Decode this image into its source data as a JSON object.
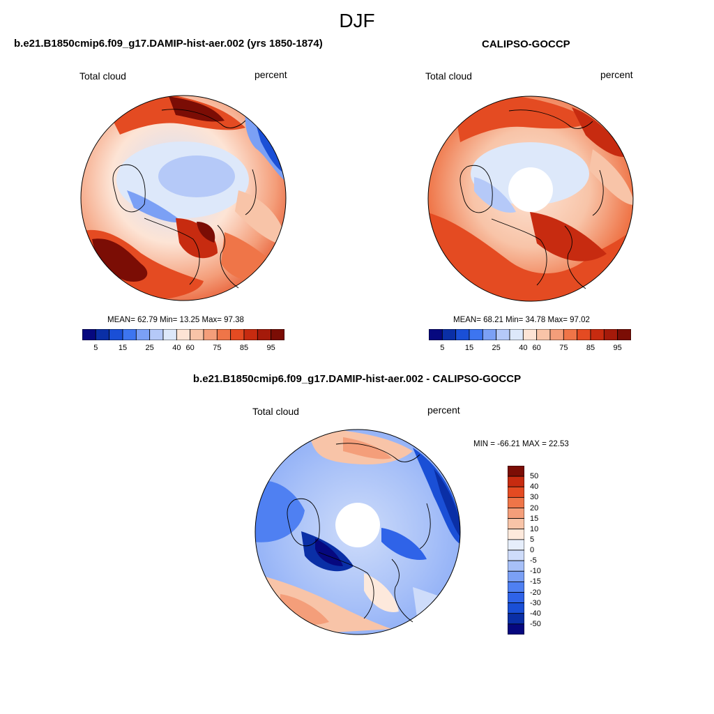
{
  "figure": {
    "season": "DJF",
    "diff_title": "b.e21.B1850cmip6.f09_g17.DAMIP-hist-aer.002 - CALIPSO-GOCCP"
  },
  "panels": [
    {
      "title": "b.e21.B1850cmip6.f09_g17.DAMIP-hist-aer.002 (yrs 1850-1874)",
      "left_label": "Total cloud",
      "right_label": "percent",
      "stats": "MEAN=  62.79  Min=  13.25  Max=  97.38",
      "has_pole_hole": false
    },
    {
      "title": "CALIPSO-GOCCP",
      "left_label": "Total cloud",
      "right_label": "percent",
      "stats": "MEAN=  68.21  Min=  34.78  Max=  97.02",
      "has_pole_hole": true
    },
    {
      "title": "",
      "left_label": "Total cloud",
      "right_label": "percent",
      "stats": "MIN = -66.21 MAX =  22.53",
      "has_pole_hole": true
    }
  ],
  "abs_colorbar": {
    "colors": [
      "#06087f",
      "#0a2fa6",
      "#1a4fd6",
      "#3d75f0",
      "#7ba0f5",
      "#b5c9f8",
      "#dde8fa",
      "#fde4d5",
      "#f8c4a8",
      "#f49e7a",
      "#ef7548",
      "#e44b22",
      "#c72b10",
      "#a51a0a",
      "#7b0d05"
    ],
    "tick_labels": [
      "5",
      "15",
      "25",
      "40",
      "60",
      "75",
      "85",
      "95"
    ]
  },
  "diff_colorbar": {
    "colors": [
      "#06087f",
      "#0a2fa6",
      "#1a4fd6",
      "#2f63e8",
      "#4f80f2",
      "#7ba0f5",
      "#a7c0f8",
      "#cedcfa",
      "#e6eefb",
      "#fde9dc",
      "#f8c4a8",
      "#f49e7a",
      "#ef7548",
      "#e44b22",
      "#c72b10",
      "#7b0d05"
    ],
    "tick_labels": [
      "50",
      "40",
      "30",
      "20",
      "15",
      "10",
      "5",
      "0",
      "-5",
      "-10",
      "-15",
      "-20",
      "-30",
      "-40",
      "-50"
    ]
  }
}
